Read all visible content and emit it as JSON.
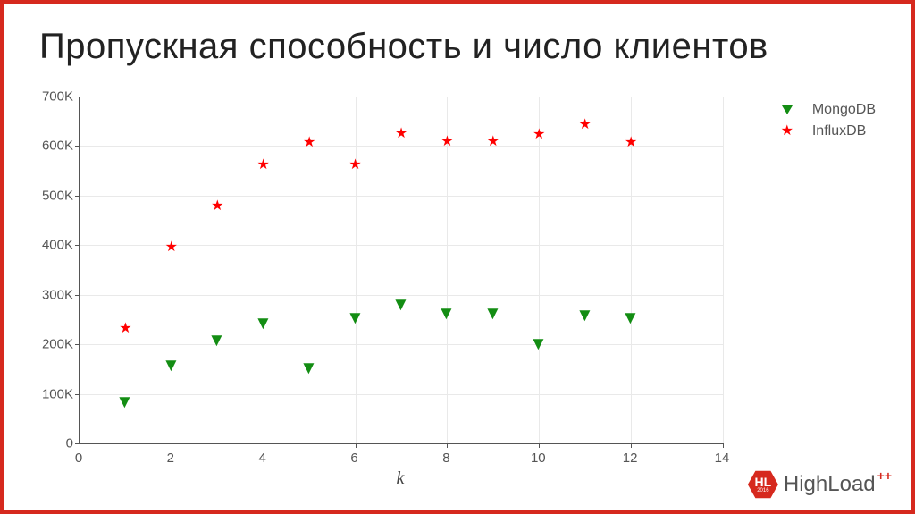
{
  "title": "Пропускная способность и число клиентов",
  "chart": {
    "type": "scatter",
    "xlabel": "k",
    "background_color": "#ffffff",
    "grid_color": "#e9e9e9",
    "axis_color": "#555555",
    "tick_color": "#555555",
    "title_fontsize": 40,
    "tick_fontsize": 15,
    "xlabel_fontsize": 20,
    "xlim": [
      0,
      14
    ],
    "ylim": [
      0,
      700000
    ],
    "xticks": [
      0,
      2,
      4,
      6,
      8,
      10,
      12,
      14
    ],
    "yticks": [
      0,
      100000,
      200000,
      300000,
      400000,
      500000,
      600000,
      700000
    ],
    "ytick_labels": [
      "0",
      "100K",
      "200K",
      "300K",
      "400K",
      "500K",
      "600K",
      "700K"
    ],
    "series": [
      {
        "name": "MongoDB",
        "marker": "triangle-down",
        "marker_size": 12,
        "color": "#138d13",
        "x": [
          1,
          2,
          3,
          4,
          5,
          6,
          7,
          8,
          9,
          10,
          11,
          12
        ],
        "y": [
          85000,
          158000,
          210000,
          243000,
          153000,
          254000,
          281000,
          263000,
          263000,
          202000,
          260000,
          255000
        ]
      },
      {
        "name": "InfluxDB",
        "marker": "star",
        "marker_size": 12,
        "color": "#ff0000",
        "x": [
          1,
          2,
          3,
          4,
          5,
          6,
          7,
          8,
          9,
          10,
          11,
          12
        ],
        "y": [
          229000,
          393000,
          476000,
          559000,
          605000,
          559000,
          623000,
          607000,
          607000,
          621000,
          640000,
          605000
        ]
      }
    ]
  },
  "legend": {
    "position": "right-top",
    "fontsize": 16,
    "items": [
      {
        "label": "MongoDB",
        "marker": "triangle-down",
        "color": "#138d13"
      },
      {
        "label": "InfluxDB",
        "marker": "star",
        "color": "#ff0000"
      }
    ]
  },
  "branding": {
    "frame_color": "#D6291E",
    "logo_text_1": "High",
    "logo_text_2": "Load",
    "logo_badge": "HL",
    "logo_year": "2016",
    "plus": "++"
  }
}
